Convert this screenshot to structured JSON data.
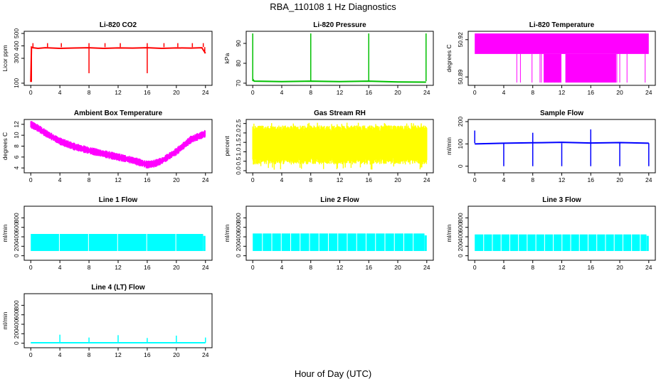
{
  "figure": {
    "title": "RBA_110108  1 Hz Diagnostics",
    "xlabel": "Hour of Day (UTC)"
  },
  "chart_data": [
    {
      "type": "line",
      "title": "Li-820 CO2",
      "ylabel": "Licor ppm",
      "color": "#ff0000",
      "xlim": [
        0,
        24
      ],
      "ylim": [
        100,
        500
      ],
      "yticks": [
        100,
        300,
        400,
        500
      ],
      "xticks": [
        0,
        4,
        8,
        12,
        16,
        20,
        24
      ],
      "series": [
        {
          "x": [
            0,
            0.1,
            0.3,
            1,
            2,
            4,
            6,
            8,
            10,
            12,
            14,
            16,
            18,
            20,
            22,
            23.5,
            24
          ],
          "y": [
            110,
            390,
            385,
            380,
            385,
            380,
            383,
            385,
            380,
            384,
            382,
            385,
            380,
            384,
            382,
            385,
            340
          ]
        }
      ],
      "spikes_up": [
        0.3,
        2.3,
        4.2,
        8,
        10.2,
        12.3,
        16,
        18.3,
        20.2,
        22.2,
        23.7
      ],
      "spikes_down": [
        0.1,
        8,
        16,
        23.9
      ]
    },
    {
      "type": "line",
      "title": "Li-820 Pressure",
      "ylabel": "kPa",
      "color": "#00c000",
      "xlim": [
        0,
        24
      ],
      "ylim": [
        70,
        95
      ],
      "yticks": [
        70,
        80,
        90
      ],
      "xticks": [
        0,
        4,
        8,
        12,
        16,
        20,
        24
      ],
      "series": [
        {
          "x": [
            0,
            0.2,
            4,
            8,
            12,
            16,
            20,
            23.9
          ],
          "y": [
            72,
            71,
            70.8,
            71,
            70.8,
            71,
            70.6,
            70.5
          ]
        }
      ],
      "spikes_up": [
        0,
        8,
        16,
        23.9
      ],
      "spike_top": 95
    },
    {
      "type": "area",
      "title": "Li-820 Temperature",
      "ylabel": "degrees C",
      "color": "#ff00ff",
      "xlim": [
        0,
        24
      ],
      "ylim": [
        50.885,
        50.925
      ],
      "yticks": [
        50.89,
        50.92
      ],
      "xticks": [
        0,
        4,
        8,
        12,
        16,
        20,
        24
      ],
      "band": {
        "low": 50.9085,
        "high": 50.925
      },
      "band_drop_ranges": [
        [
          9.5,
          11.9
        ],
        [
          12.5,
          19.5
        ]
      ],
      "band_drop_lines": [
        5.8,
        6.3,
        7.9,
        9.0,
        9.2,
        9.6,
        10.0,
        10.2,
        10.5,
        11.0,
        11.5,
        11.9,
        19.6,
        20.0,
        21.0,
        23.5
      ],
      "drop_level": 50.8855
    },
    {
      "type": "area",
      "title": "Ambient Box Temperature",
      "ylabel": "degrees C",
      "color": "#ff00ff",
      "xlim": [
        0,
        24
      ],
      "ylim": [
        3.5,
        12.5
      ],
      "yticks": [
        4,
        6,
        8,
        10,
        12
      ],
      "xticks": [
        0,
        4,
        8,
        12,
        16,
        20,
        24
      ],
      "series": [
        {
          "x": [
            0,
            1,
            2,
            4,
            6,
            8,
            10,
            12,
            14,
            16,
            17,
            18,
            20,
            22,
            24
          ],
          "y": [
            12,
            11.3,
            10.4,
            8.9,
            7.9,
            7.2,
            6.6,
            6.0,
            5.4,
            4.6,
            4.8,
            5.3,
            7.0,
            9.2,
            10.3
          ]
        }
      ],
      "band_halfwidth": 0.55
    },
    {
      "type": "area",
      "title": "Gas Stream RH",
      "ylabel": "percent",
      "color": "#ffff00",
      "xlim": [
        0,
        24
      ],
      "ylim": [
        0,
        2.6
      ],
      "yticks": [
        0.0,
        0.5,
        1.0,
        1.5,
        2.0,
        2.5
      ],
      "xticks": [
        0,
        4,
        8,
        12,
        16,
        20,
        24
      ],
      "band": {
        "low": 0.5,
        "high": 2.25
      },
      "band_extremes": {
        "low": 0.05,
        "high": 2.55
      }
    },
    {
      "type": "line",
      "title": "Sample Flow",
      "ylabel": "ml/min",
      "color": "#0000ff",
      "xlim": [
        0,
        24
      ],
      "ylim": [
        -20,
        200
      ],
      "yticks": [
        0,
        100,
        200
      ],
      "xticks": [
        0,
        4,
        8,
        12,
        16,
        20,
        24
      ],
      "series": [
        {
          "x": [
            0,
            4,
            8,
            12,
            16,
            20,
            24
          ],
          "y": [
            100,
            103,
            105,
            107,
            104,
            106,
            103
          ]
        }
      ],
      "spikes_up": [
        [
          0,
          160
        ],
        [
          8,
          150
        ],
        [
          16,
          165
        ]
      ],
      "spikes_down": [
        4,
        8,
        12,
        16,
        20,
        24
      ]
    },
    {
      "type": "area",
      "title": "Line 1 Flow",
      "ylabel": "ml/min",
      "color": "#00ffff",
      "xlim": [
        0,
        24
      ],
      "ylim": [
        -50,
        1000
      ],
      "yticks": [
        0,
        200,
        400,
        600,
        800
      ],
      "xticks": [
        0,
        4,
        8,
        12,
        16,
        20,
        24
      ],
      "band": {
        "low": 100,
        "high": 460
      },
      "gaps": [
        3.9,
        7.9,
        11.9,
        15.9,
        19.9
      ],
      "tail": [
        23.7,
        24,
        420
      ]
    },
    {
      "type": "area",
      "title": "Line 2 Flow",
      "ylabel": "ml/min",
      "color": "#00ffff",
      "xlim": [
        0,
        24
      ],
      "ylim": [
        -50,
        1000
      ],
      "yticks": [
        0,
        200,
        400,
        600,
        800
      ],
      "xticks": [
        0,
        4,
        8,
        12,
        16,
        20,
        24
      ],
      "band": {
        "low": 100,
        "high": 470
      },
      "gaps": [
        1.3,
        2.6,
        3.9,
        5.2,
        6.5,
        7.8,
        9.1,
        10.4,
        11.7,
        13.0,
        14.3,
        15.6,
        16.9,
        18.2,
        19.5,
        20.8,
        22.1
      ],
      "tail": [
        23.7,
        24,
        430
      ]
    },
    {
      "type": "area",
      "title": "Line 3 Flow",
      "ylabel": "ml/min",
      "color": "#00ffff",
      "xlim": [
        0,
        24
      ],
      "ylim": [
        -50,
        1000
      ],
      "yticks": [
        0,
        200,
        400,
        600,
        800
      ],
      "xticks": [
        0,
        4,
        8,
        12,
        16,
        20,
        24
      ],
      "band": {
        "low": 100,
        "high": 450
      },
      "gaps": [
        1.2,
        2.4,
        3.6,
        4.8,
        6.0,
        7.2,
        8.4,
        9.6,
        10.8,
        12.0,
        13.2,
        14.4,
        15.6,
        16.8,
        18.0,
        19.2,
        20.4,
        21.6,
        22.8
      ],
      "tail": [
        23.7,
        24,
        420
      ]
    },
    {
      "type": "line",
      "title": "Line 4 (LT) Flow",
      "ylabel": "ml/min",
      "color": "#00ffff",
      "xlim": [
        0,
        24
      ],
      "ylim": [
        -50,
        1000
      ],
      "yticks": [
        0,
        200,
        400,
        600,
        800
      ],
      "xticks": [
        0,
        4,
        8,
        12,
        16,
        20,
        24
      ],
      "series": [
        {
          "x": [
            0,
            24
          ],
          "y": [
            10,
            10
          ]
        }
      ],
      "spikes_up": [
        [
          4,
          180
        ],
        [
          8,
          120
        ],
        [
          12,
          170
        ],
        [
          16,
          110
        ],
        [
          20,
          160
        ],
        [
          24,
          120
        ]
      ]
    }
  ]
}
